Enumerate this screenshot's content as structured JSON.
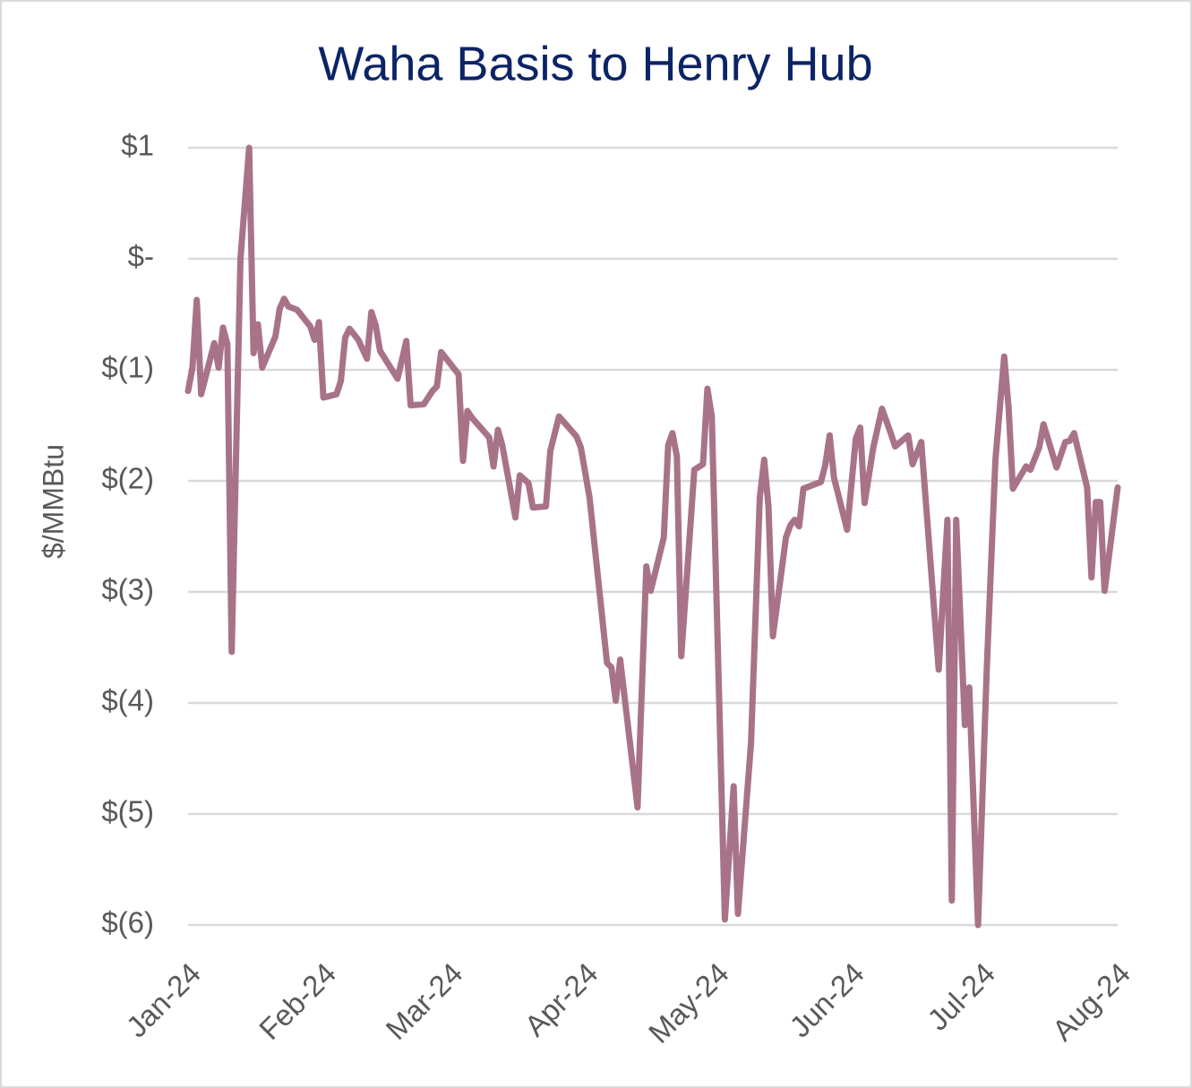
{
  "chart_data": {
    "type": "line",
    "title": "Waha Basis to Henry Hub",
    "y_label": "$/MMBtu",
    "color": "#a87388",
    "grid": true,
    "xlim": [
      0,
      213
    ],
    "xticks": [
      {
        "value": 0,
        "label": "Jan-24"
      },
      {
        "value": 31,
        "label": "Feb-24"
      },
      {
        "value": 60,
        "label": "Mar-24"
      },
      {
        "value": 91,
        "label": "Apr-24"
      },
      {
        "value": 121,
        "label": "May-24"
      },
      {
        "value": 152,
        "label": "Jun-24"
      },
      {
        "value": 182,
        "label": "Jul-24"
      },
      {
        "value": 213,
        "label": "Aug-24"
      }
    ],
    "ylim": [
      -6,
      1
    ],
    "yticks": [
      {
        "value": 1,
        "label": "$1"
      },
      {
        "value": 0,
        "label": "$-"
      },
      {
        "value": -1,
        "label": "$(1)"
      },
      {
        "value": -2,
        "label": "$(2)"
      },
      {
        "value": -3,
        "label": "$(3)"
      },
      {
        "value": -4,
        "label": "$(4)"
      },
      {
        "value": -5,
        "label": "$(5)"
      },
      {
        "value": -6,
        "label": "$(6)"
      }
    ],
    "x": [
      0,
      1,
      2,
      3,
      6,
      7,
      8,
      9,
      10,
      12,
      14,
      15,
      16,
      17,
      20,
      21,
      22,
      23,
      25,
      28,
      29,
      30,
      31,
      34,
      35,
      36,
      37,
      39,
      41,
      42,
      43,
      44,
      48,
      50,
      51,
      54,
      56,
      57,
      58,
      62,
      63,
      64,
      65,
      69,
      70,
      71,
      72,
      75,
      76,
      78,
      79,
      82,
      83,
      85,
      89,
      90,
      92,
      96,
      97,
      98,
      99,
      103,
      105,
      106,
      109,
      110,
      111,
      112,
      113,
      116,
      118,
      119,
      120,
      123,
      125,
      126,
      129,
      131,
      132,
      133,
      134,
      137,
      138,
      139,
      140,
      141,
      145,
      146,
      147,
      148,
      151,
      153,
      154,
      155,
      157,
      159,
      161,
      162,
      165,
      166,
      168,
      172,
      174,
      175,
      176,
      178,
      179,
      181,
      183,
      185,
      187,
      188,
      189,
      192,
      193,
      195,
      196,
      199,
      201,
      202,
      203,
      206,
      207,
      208,
      209,
      210,
      213
    ],
    "values": [
      -1.19,
      -0.98,
      -0.37,
      -1.22,
      -0.76,
      -0.98,
      -0.62,
      -0.77,
      -3.54,
      0.0,
      1.0,
      -0.85,
      -0.59,
      -0.98,
      -0.7,
      -0.45,
      -0.36,
      -0.43,
      -0.46,
      -0.61,
      -0.73,
      -0.57,
      -1.25,
      -1.22,
      -1.1,
      -0.71,
      -0.63,
      -0.73,
      -0.9,
      -0.48,
      -0.6,
      -0.83,
      -1.08,
      -0.74,
      -1.32,
      -1.31,
      -1.19,
      -1.15,
      -0.84,
      -1.04,
      -1.82,
      -1.37,
      -1.43,
      -1.61,
      -1.87,
      -1.54,
      -1.68,
      -2.33,
      -1.95,
      -2.02,
      -2.24,
      -2.23,
      -1.73,
      -1.42,
      -1.6,
      -1.7,
      -2.15,
      -3.64,
      -3.68,
      -3.98,
      -3.61,
      -4.94,
      -2.77,
      -2.99,
      -2.51,
      -1.68,
      -1.57,
      -1.78,
      -3.58,
      -1.9,
      -1.85,
      -1.17,
      -1.42,
      -5.95,
      -4.75,
      -5.9,
      -4.36,
      -2.15,
      -1.81,
      -2.23,
      -3.4,
      -2.51,
      -2.4,
      -2.35,
      -2.41,
      -2.07,
      -2.01,
      -1.86,
      -1.59,
      -1.97,
      -2.44,
      -1.62,
      -1.52,
      -2.2,
      -1.7,
      -1.35,
      -1.57,
      -1.69,
      -1.59,
      -1.85,
      -1.65,
      -3.7,
      -2.35,
      -5.78,
      -2.35,
      -4.2,
      -3.86,
      -6.0,
      -3.7,
      -1.81,
      -0.88,
      -1.34,
      -2.07,
      -1.87,
      -1.9,
      -1.7,
      -1.49,
      -1.88,
      -1.65,
      -1.64,
      -1.57,
      -2.06,
      -2.87,
      -2.19,
      -2.19,
      -2.99,
      -2.06
    ]
  }
}
